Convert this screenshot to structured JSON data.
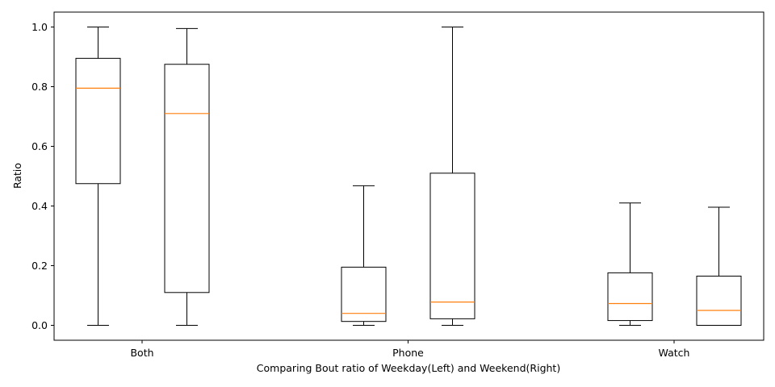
{
  "chart_data": {
    "type": "boxplot",
    "title": "",
    "xlabel": "Comparing Bout ratio of Weekday(Left) and Weekend(Right)",
    "ylabel": "Ratio",
    "ylim": [
      -0.05,
      1.05
    ],
    "yticks": [
      0.0,
      0.2,
      0.4,
      0.6,
      0.8,
      1.0
    ],
    "ytick_labels": [
      "0.0",
      "0.2",
      "0.4",
      "0.6",
      "0.8",
      "1.0"
    ],
    "categories": [
      "Both",
      "Phone",
      "Watch"
    ],
    "grid": false,
    "colors": {
      "box": "#000000",
      "median": "#ff7f0e"
    },
    "boxes": [
      {
        "group": "Both",
        "side": "Weekday",
        "min": 0.0,
        "q1": 0.475,
        "median": 0.795,
        "q3": 0.895,
        "max": 1.0
      },
      {
        "group": "Both",
        "side": "Weekend",
        "min": 0.0,
        "q1": 0.11,
        "median": 0.71,
        "q3": 0.875,
        "max": 0.995
      },
      {
        "group": "Phone",
        "side": "Weekday",
        "min": 0.0,
        "q1": 0.013,
        "median": 0.04,
        "q3": 0.195,
        "max": 0.468
      },
      {
        "group": "Phone",
        "side": "Weekend",
        "min": 0.0,
        "q1": 0.022,
        "median": 0.078,
        "q3": 0.51,
        "max": 1.0
      },
      {
        "group": "Watch",
        "side": "Weekday",
        "min": 0.0,
        "q1": 0.016,
        "median": 0.073,
        "q3": 0.176,
        "max": 0.41
      },
      {
        "group": "Watch",
        "side": "Weekend",
        "min": 0.0,
        "q1": 0.0,
        "median": 0.05,
        "q3": 0.165,
        "max": 0.396
      }
    ]
  }
}
